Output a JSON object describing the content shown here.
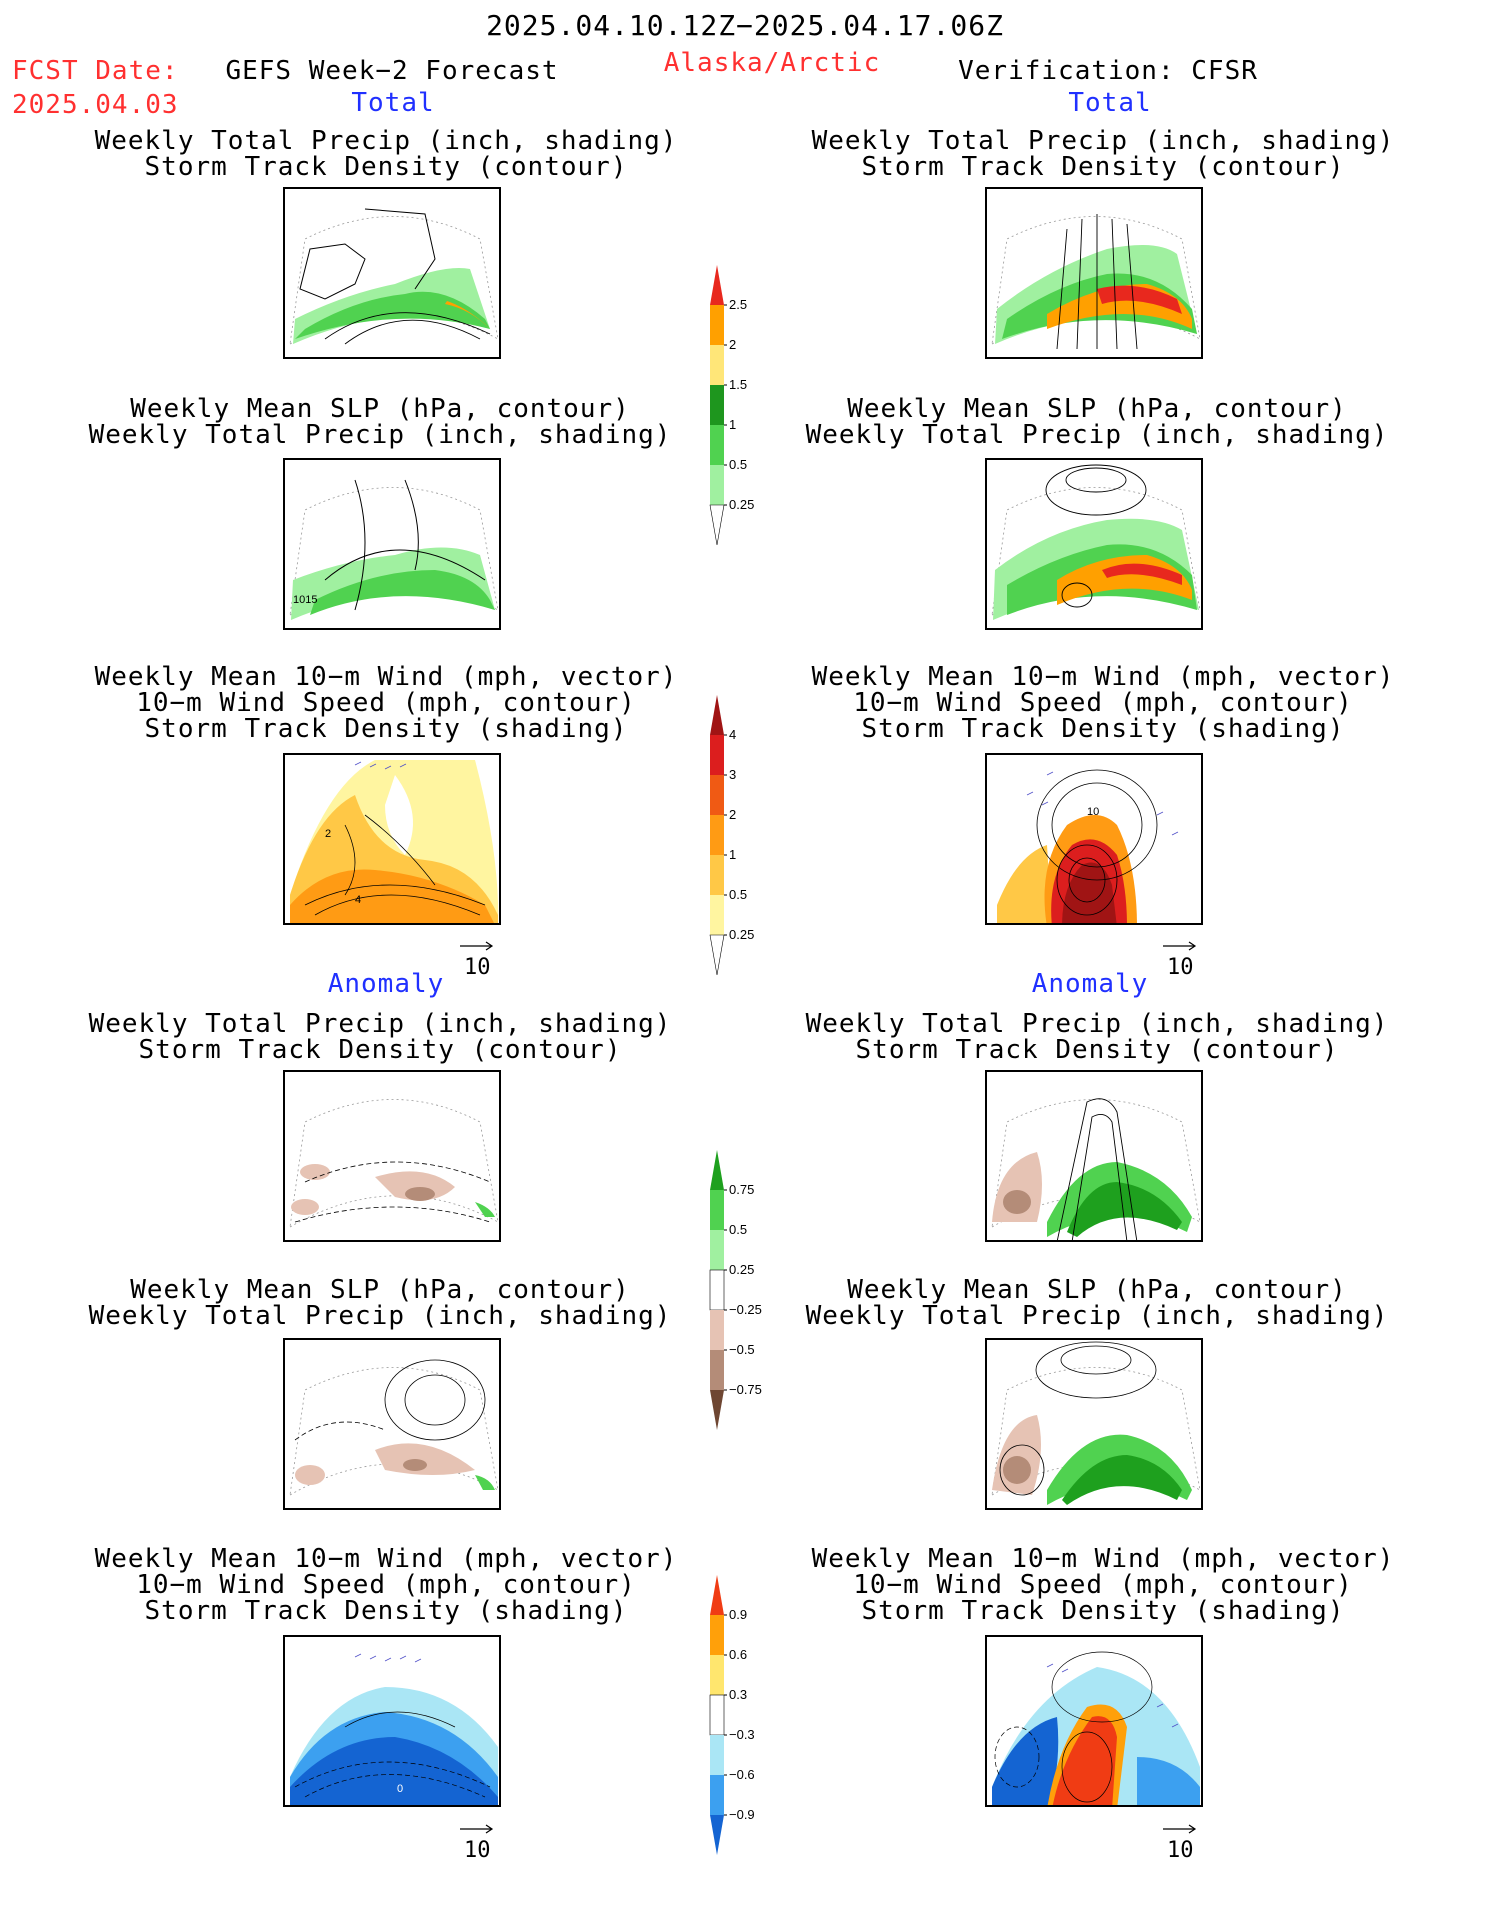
{
  "header": {
    "period": "2025.04.10.12Z−2025.04.17.06Z",
    "fcst_label": "FCST Date:",
    "fcst_date": "2025.04.03",
    "model": "GEFS Week−2 Forecast",
    "region": "Alaska/Arctic",
    "verification": "Verification: CFSR"
  },
  "sections": {
    "total": "Total",
    "anomaly": "Anomaly"
  },
  "titles": {
    "precip_track": [
      "Weekly Total Precip (inch, shading)",
      "Storm Track Density (contour)"
    ],
    "slp_precip": [
      "Weekly Mean SLP (hPa, contour)",
      "Weekly Total Precip (inch, shading)"
    ],
    "wind_track": [
      "Weekly Mean 10−m Wind (mph, vector)",
      "10−m Wind Speed (mph, contour)",
      "Storm Track Density (shading)"
    ]
  },
  "panel_labels": {
    "slp_fcst_contour": "1015",
    "wind_fcst_contour_a": "2",
    "wind_fcst_contour_b": "4",
    "wind_cfsr_contour": "10",
    "wind_anom_fcst_contour": "0"
  },
  "vector_ref": "10",
  "chart_data": [
    {
      "type": "heatmap",
      "name": "precip_colorbar_total",
      "units": "inch",
      "levels": [
        "2.5",
        "2",
        "1.5",
        "1",
        "0.5",
        "0.25"
      ],
      "colors": [
        "#e8281e",
        "#ffa000",
        "#ffe678",
        "#1e961e",
        "#50d250",
        "#a0f0a0",
        "#ffffff"
      ]
    },
    {
      "type": "heatmap",
      "name": "storm_track_colorbar_total",
      "levels": [
        "4",
        "3",
        "2",
        "1",
        "0.5",
        "0.25"
      ],
      "colors": [
        "#a01414",
        "#dc1e1e",
        "#f05a14",
        "#ff9b14",
        "#ffc846",
        "#fff5a0",
        "#ffffff"
      ]
    },
    {
      "type": "heatmap",
      "name": "precip_anomaly_colorbar",
      "units": "inch",
      "levels": [
        "0.75",
        "0.5",
        "0.25",
        "−0.25",
        "−0.5",
        "−0.75"
      ],
      "colors": [
        "#1ea01e",
        "#50d250",
        "#a0f0a0",
        "#ffffff",
        "#e6c3b4",
        "#b48c78",
        "#6e4632"
      ]
    },
    {
      "type": "heatmap",
      "name": "storm_track_anomaly_colorbar",
      "levels": [
        "0.9",
        "0.6",
        "0.3",
        "−0.3",
        "−0.6",
        "−0.9"
      ],
      "colors": [
        "#f03c14",
        "#ffa00a",
        "#ffe66e",
        "#ffffff",
        "#aae6f5",
        "#3ca0f0",
        "#1464d2"
      ]
    }
  ]
}
